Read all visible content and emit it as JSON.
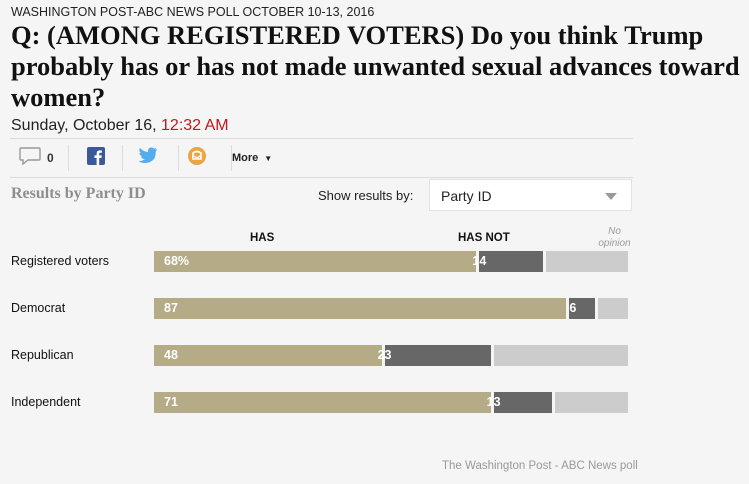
{
  "kicker": "WASHINGTON POST-ABC NEWS POLL OCTOBER 10-13, 2016",
  "headline": "Q: (AMONG REGISTERED VOTERS) Do you think Trump probably has or has not made unwanted sexual advances toward women?",
  "dateline": {
    "date": "Sunday, October 16, ",
    "time": "12:32 AM"
  },
  "share": {
    "comment_count": "0",
    "more_label": "More",
    "icons": [
      "comment-icon",
      "facebook-icon",
      "twitter-icon",
      "email-icon",
      "chevron-down-icon"
    ]
  },
  "controls": {
    "results_title": "Results by Party ID",
    "show_label": "Show results by:",
    "selected": "Party ID"
  },
  "colors": {
    "has": "#b5ac87",
    "has_not": "#676767",
    "no_opinion": "#cccccc",
    "time": "#c4161c"
  },
  "chart_data": {
    "type": "bar",
    "orientation": "horizontal",
    "stacked": true,
    "title": "Results by Party ID",
    "column_headers": {
      "has": "HAS",
      "has_not": "HAS NOT",
      "no_opinion": "No opinion"
    },
    "categories": [
      "Registered voters",
      "Democrat",
      "Republican",
      "Independent"
    ],
    "series": [
      {
        "name": "HAS",
        "values": [
          68,
          87,
          48,
          71
        ],
        "labels": [
          "68%",
          "87",
          "48",
          "71"
        ]
      },
      {
        "name": "HAS NOT",
        "values": [
          14,
          6,
          23,
          13
        ],
        "labels": [
          "14",
          "6",
          "23",
          "13"
        ]
      },
      {
        "name": "No opinion",
        "values": [
          18,
          7,
          29,
          16
        ]
      }
    ],
    "xlim": [
      0,
      100
    ],
    "source": "The Washington Post - ABC News poll"
  }
}
